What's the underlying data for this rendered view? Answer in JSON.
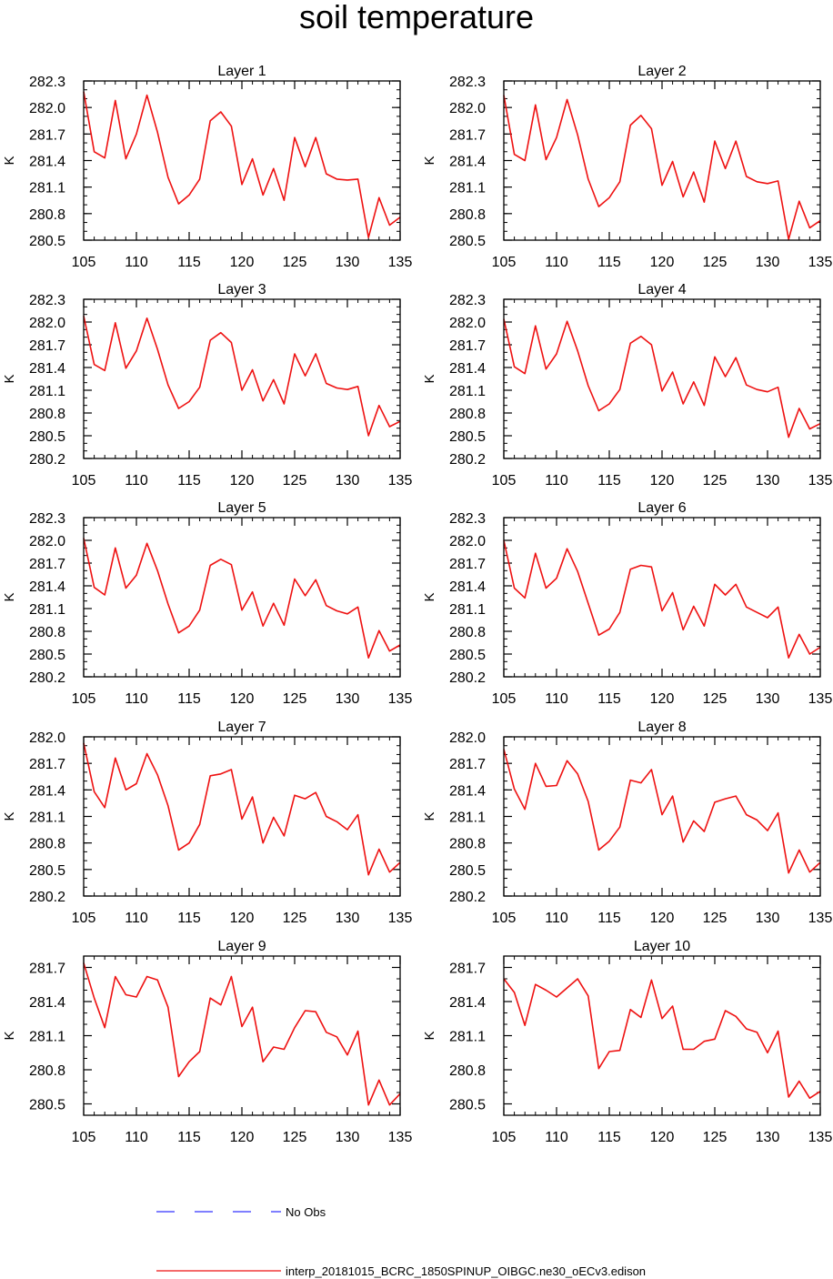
{
  "title": "soil temperature",
  "legend": {
    "entries": [
      {
        "label": "No Obs",
        "color": "#3333ff",
        "style": "dashed"
      },
      {
        "label": "interp_20181015_BCRC_1850SPINUP_OIBGC.ne30_oECv3.edison",
        "color": "#ee1111",
        "style": "solid"
      }
    ]
  },
  "chart_data": [
    {
      "type": "line",
      "title": "Layer 1",
      "ylabel": "K",
      "xlabel": "",
      "xlim": [
        105,
        135
      ],
      "ylim": [
        280.5,
        282.3
      ],
      "xticks": [
        105,
        110,
        115,
        120,
        125,
        130,
        135
      ],
      "yticks": [
        280.5,
        280.8,
        281.1,
        281.4,
        281.7,
        282.0,
        282.3
      ],
      "x": [
        105,
        106,
        107,
        108,
        109,
        110,
        111,
        112,
        113,
        114,
        115,
        116,
        117,
        118,
        119,
        120,
        121,
        122,
        123,
        124,
        125,
        126,
        127,
        128,
        129,
        130,
        131,
        132,
        133,
        134,
        135
      ],
      "series": [
        {
          "name": "interp_20181015_BCRC_1850SPINUP_OIBGC.ne30_oECv3.edison",
          "color": "#ee1111",
          "values": [
            282.18,
            281.5,
            281.43,
            282.08,
            281.42,
            281.7,
            282.14,
            281.72,
            281.21,
            280.91,
            281.01,
            281.19,
            281.85,
            281.95,
            281.79,
            281.13,
            281.42,
            281.01,
            281.31,
            280.95,
            281.66,
            281.33,
            281.66,
            281.25,
            281.19,
            281.18,
            281.19,
            280.53,
            280.98,
            280.67,
            280.76
          ]
        }
      ]
    },
    {
      "type": "line",
      "title": "Layer 2",
      "ylabel": "K",
      "xlabel": "",
      "xlim": [
        105,
        135
      ],
      "ylim": [
        280.5,
        282.3
      ],
      "xticks": [
        105,
        110,
        115,
        120,
        125,
        130,
        135
      ],
      "yticks": [
        280.5,
        280.8,
        281.1,
        281.4,
        281.7,
        282.0,
        282.3
      ],
      "x": [
        105,
        106,
        107,
        108,
        109,
        110,
        111,
        112,
        113,
        114,
        115,
        116,
        117,
        118,
        119,
        120,
        121,
        122,
        123,
        124,
        125,
        126,
        127,
        128,
        129,
        130,
        131,
        132,
        133,
        134,
        135
      ],
      "series": [
        {
          "name": "interp_20181015_BCRC_1850SPINUP_OIBGC.ne30_oECv3.edison",
          "color": "#ee1111",
          "values": [
            282.14,
            281.47,
            281.4,
            282.03,
            281.41,
            281.66,
            282.09,
            281.69,
            281.19,
            280.88,
            280.98,
            281.16,
            281.8,
            281.91,
            281.76,
            281.12,
            281.39,
            280.99,
            281.27,
            280.93,
            281.62,
            281.31,
            281.62,
            281.22,
            281.16,
            281.14,
            281.17,
            280.51,
            280.94,
            280.64,
            280.72
          ]
        }
      ]
    },
    {
      "type": "line",
      "title": "Layer 3",
      "ylabel": "K",
      "xlabel": "",
      "xlim": [
        105,
        135
      ],
      "ylim": [
        280.2,
        282.3
      ],
      "xticks": [
        105,
        110,
        115,
        120,
        125,
        130,
        135
      ],
      "yticks": [
        280.2,
        280.5,
        280.8,
        281.1,
        281.4,
        281.7,
        282.0,
        282.3
      ],
      "x": [
        105,
        106,
        107,
        108,
        109,
        110,
        111,
        112,
        113,
        114,
        115,
        116,
        117,
        118,
        119,
        120,
        121,
        122,
        123,
        124,
        125,
        126,
        127,
        128,
        129,
        130,
        131,
        132,
        133,
        134,
        135
      ],
      "series": [
        {
          "name": "interp_20181015_BCRC_1850SPINUP_OIBGC.ne30_oECv3.edison",
          "color": "#ee1111",
          "values": [
            282.08,
            281.44,
            281.36,
            281.99,
            281.39,
            281.62,
            282.05,
            281.64,
            281.17,
            280.86,
            280.95,
            281.14,
            281.76,
            281.86,
            281.73,
            281.1,
            281.37,
            280.96,
            281.24,
            280.92,
            281.58,
            281.29,
            281.58,
            281.19,
            281.13,
            281.11,
            281.15,
            280.5,
            280.9,
            280.62,
            280.69
          ]
        }
      ]
    },
    {
      "type": "line",
      "title": "Layer 4",
      "ylabel": "K",
      "xlabel": "",
      "xlim": [
        105,
        135
      ],
      "ylim": [
        280.2,
        282.3
      ],
      "xticks": [
        105,
        110,
        115,
        120,
        125,
        130,
        135
      ],
      "yticks": [
        280.2,
        280.5,
        280.8,
        281.1,
        281.4,
        281.7,
        282.0,
        282.3
      ],
      "x": [
        105,
        106,
        107,
        108,
        109,
        110,
        111,
        112,
        113,
        114,
        115,
        116,
        117,
        118,
        119,
        120,
        121,
        122,
        123,
        124,
        125,
        126,
        127,
        128,
        129,
        130,
        131,
        132,
        133,
        134,
        135
      ],
      "series": [
        {
          "name": "interp_20181015_BCRC_1850SPINUP_OIBGC.ne30_oECv3.edison",
          "color": "#ee1111",
          "values": [
            282.04,
            281.41,
            281.32,
            281.95,
            281.38,
            281.58,
            282.01,
            281.62,
            281.16,
            280.83,
            280.92,
            281.11,
            281.72,
            281.81,
            281.7,
            281.09,
            281.34,
            280.92,
            281.21,
            280.9,
            281.54,
            281.28,
            281.53,
            281.17,
            281.11,
            281.08,
            281.14,
            280.48,
            280.86,
            280.59,
            280.66
          ]
        }
      ]
    },
    {
      "type": "line",
      "title": "Layer 5",
      "ylabel": "K",
      "xlabel": "",
      "xlim": [
        105,
        135
      ],
      "ylim": [
        280.2,
        282.3
      ],
      "xticks": [
        105,
        110,
        115,
        120,
        125,
        130,
        135
      ],
      "yticks": [
        280.2,
        280.5,
        280.8,
        281.1,
        281.4,
        281.7,
        282.0,
        282.3
      ],
      "x": [
        105,
        106,
        107,
        108,
        109,
        110,
        111,
        112,
        113,
        114,
        115,
        116,
        117,
        118,
        119,
        120,
        121,
        122,
        123,
        124,
        125,
        126,
        127,
        128,
        129,
        130,
        131,
        132,
        133,
        134,
        135
      ],
      "series": [
        {
          "name": "interp_20181015_BCRC_1850SPINUP_OIBGC.ne30_oECv3.edison",
          "color": "#ee1111",
          "values": [
            282.03,
            281.38,
            281.28,
            281.9,
            281.37,
            281.54,
            281.96,
            281.6,
            281.16,
            280.78,
            280.87,
            281.08,
            281.67,
            281.75,
            281.68,
            281.08,
            281.32,
            280.87,
            281.17,
            280.88,
            281.49,
            281.27,
            281.48,
            281.14,
            281.07,
            281.03,
            281.12,
            280.45,
            280.81,
            280.54,
            280.62
          ]
        }
      ]
    },
    {
      "type": "line",
      "title": "Layer 6",
      "ylabel": "K",
      "xlabel": "",
      "xlim": [
        105,
        135
      ],
      "ylim": [
        280.2,
        282.3
      ],
      "xticks": [
        105,
        110,
        115,
        120,
        125,
        130,
        135
      ],
      "yticks": [
        280.2,
        280.5,
        280.8,
        281.1,
        281.4,
        281.7,
        282.0,
        282.3
      ],
      "x": [
        105,
        106,
        107,
        108,
        109,
        110,
        111,
        112,
        113,
        114,
        115,
        116,
        117,
        118,
        119,
        120,
        121,
        122,
        123,
        124,
        125,
        126,
        127,
        128,
        129,
        130,
        131,
        132,
        133,
        134,
        135
      ],
      "series": [
        {
          "name": "interp_20181015_BCRC_1850SPINUP_OIBGC.ne30_oECv3.edison",
          "color": "#ee1111",
          "values": [
            282.0,
            281.37,
            281.24,
            281.83,
            281.37,
            281.5,
            281.89,
            281.59,
            281.17,
            280.75,
            280.83,
            281.05,
            281.62,
            281.67,
            281.65,
            281.07,
            281.31,
            280.82,
            281.13,
            280.87,
            281.42,
            281.28,
            281.42,
            281.12,
            281.05,
            280.98,
            281.12,
            280.45,
            280.76,
            280.5,
            280.59
          ]
        }
      ]
    },
    {
      "type": "line",
      "title": "Layer 7",
      "ylabel": "K",
      "xlabel": "",
      "xlim": [
        105,
        135
      ],
      "ylim": [
        280.2,
        282.0
      ],
      "xticks": [
        105,
        110,
        115,
        120,
        125,
        130,
        135
      ],
      "yticks": [
        280.2,
        280.5,
        280.8,
        281.1,
        281.4,
        281.7,
        282.0
      ],
      "x": [
        105,
        106,
        107,
        108,
        109,
        110,
        111,
        112,
        113,
        114,
        115,
        116,
        117,
        118,
        119,
        120,
        121,
        122,
        123,
        124,
        125,
        126,
        127,
        128,
        129,
        130,
        131,
        132,
        133,
        134,
        135
      ],
      "series": [
        {
          "name": "interp_20181015_BCRC_1850SPINUP_OIBGC.ne30_oECv3.edison",
          "color": "#ee1111",
          "values": [
            281.93,
            281.38,
            281.2,
            281.76,
            281.4,
            281.47,
            281.81,
            281.57,
            281.22,
            280.72,
            280.8,
            281.01,
            281.56,
            281.58,
            281.63,
            281.07,
            281.32,
            280.8,
            281.09,
            280.88,
            281.34,
            281.3,
            281.37,
            281.1,
            281.04,
            280.95,
            281.12,
            280.44,
            280.73,
            280.47,
            280.58
          ]
        }
      ]
    },
    {
      "type": "line",
      "title": "Layer 8",
      "ylabel": "K",
      "xlabel": "",
      "xlim": [
        105,
        135
      ],
      "ylim": [
        280.2,
        282.0
      ],
      "xticks": [
        105,
        110,
        115,
        120,
        125,
        130,
        135
      ],
      "yticks": [
        280.2,
        280.5,
        280.8,
        281.1,
        281.4,
        281.7,
        282.0
      ],
      "x": [
        105,
        106,
        107,
        108,
        109,
        110,
        111,
        112,
        113,
        114,
        115,
        116,
        117,
        118,
        119,
        120,
        121,
        122,
        123,
        124,
        125,
        126,
        127,
        128,
        129,
        130,
        131,
        132,
        133,
        134,
        135
      ],
      "series": [
        {
          "name": "interp_20181015_BCRC_1850SPINUP_OIBGC.ne30_oECv3.edison",
          "color": "#ee1111",
          "values": [
            281.86,
            281.41,
            281.18,
            281.7,
            281.44,
            281.45,
            281.73,
            281.58,
            281.27,
            280.72,
            280.82,
            280.98,
            281.51,
            281.48,
            281.63,
            281.12,
            281.33,
            280.81,
            281.05,
            280.93,
            281.26,
            281.3,
            281.33,
            281.12,
            281.06,
            280.94,
            281.14,
            280.46,
            280.72,
            280.47,
            280.58
          ]
        }
      ]
    },
    {
      "type": "line",
      "title": "Layer 9",
      "ylabel": "K",
      "xlabel": "",
      "xlim": [
        105,
        135
      ],
      "ylim": [
        280.4,
        281.8
      ],
      "xticks": [
        105,
        110,
        115,
        120,
        125,
        130,
        135
      ],
      "yticks": [
        280.5,
        280.8,
        281.1,
        281.4,
        281.7
      ],
      "x": [
        105,
        106,
        107,
        108,
        109,
        110,
        111,
        112,
        113,
        114,
        115,
        116,
        117,
        118,
        119,
        120,
        121,
        122,
        123,
        124,
        125,
        126,
        127,
        128,
        129,
        130,
        131,
        132,
        133,
        134,
        135
      ],
      "series": [
        {
          "name": "interp_20181015_BCRC_1850SPINUP_OIBGC.ne30_oECv3.edison",
          "color": "#ee1111",
          "values": [
            281.74,
            281.43,
            281.17,
            281.62,
            281.46,
            281.44,
            281.62,
            281.59,
            281.35,
            280.74,
            280.87,
            280.96,
            281.43,
            281.37,
            281.62,
            281.18,
            281.35,
            280.87,
            281.0,
            280.98,
            281.17,
            281.32,
            281.31,
            281.13,
            281.09,
            280.93,
            281.14,
            280.49,
            280.71,
            280.49,
            280.59
          ]
        }
      ]
    },
    {
      "type": "line",
      "title": "Layer 10",
      "ylabel": "K",
      "xlabel": "",
      "xlim": [
        105,
        135
      ],
      "ylim": [
        280.4,
        281.8
      ],
      "xticks": [
        105,
        110,
        115,
        120,
        125,
        130,
        135
      ],
      "yticks": [
        280.5,
        280.8,
        281.1,
        281.4,
        281.7
      ],
      "x": [
        105,
        106,
        107,
        108,
        109,
        110,
        111,
        112,
        113,
        114,
        115,
        116,
        117,
        118,
        119,
        120,
        121,
        122,
        123,
        124,
        125,
        126,
        127,
        128,
        129,
        130,
        131,
        132,
        133,
        134,
        135
      ],
      "series": [
        {
          "name": "interp_20181015_BCRC_1850SPINUP_OIBGC.ne30_oECv3.edison",
          "color": "#ee1111",
          "values": [
            281.6,
            281.48,
            281.19,
            281.55,
            281.5,
            281.44,
            281.52,
            281.6,
            281.45,
            280.81,
            280.96,
            280.97,
            281.33,
            281.26,
            281.59,
            281.25,
            281.36,
            280.98,
            280.98,
            281.05,
            281.07,
            281.32,
            281.27,
            281.16,
            281.13,
            280.95,
            281.14,
            280.56,
            280.7,
            280.55,
            280.61
          ]
        }
      ]
    }
  ]
}
